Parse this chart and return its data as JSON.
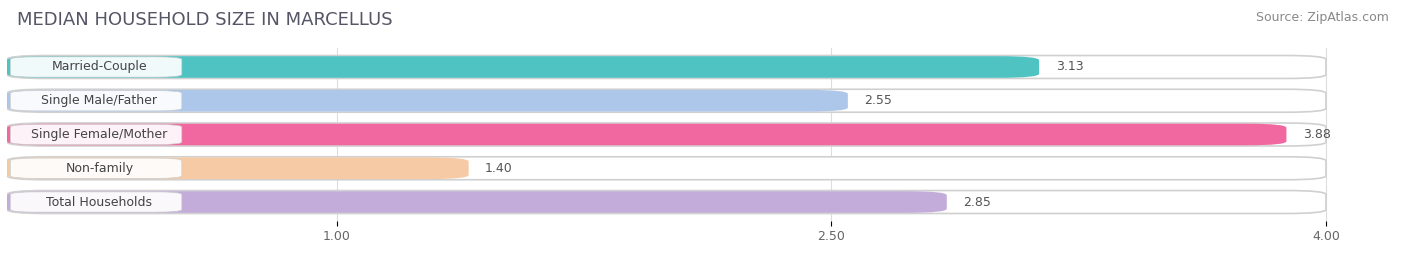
{
  "title": "MEDIAN HOUSEHOLD SIZE IN MARCELLUS",
  "source": "Source: ZipAtlas.com",
  "categories": [
    "Married-Couple",
    "Single Male/Father",
    "Single Female/Mother",
    "Non-family",
    "Total Households"
  ],
  "values": [
    3.13,
    2.55,
    3.88,
    1.4,
    2.85
  ],
  "bar_colors": [
    "#45BFBF",
    "#A8C4E8",
    "#F0609A",
    "#F5C8A0",
    "#C0A8D8"
  ],
  "xlim": [
    0,
    4.2
  ],
  "xdata_max": 4.0,
  "xticks": [
    1.0,
    2.5,
    4.0
  ],
  "xticklabels": [
    "1.00",
    "2.50",
    "4.00"
  ],
  "background_color": "#ffffff",
  "bar_bg_color": "#e8e8e8",
  "title_fontsize": 13,
  "source_fontsize": 9,
  "label_fontsize": 9,
  "value_fontsize": 9
}
